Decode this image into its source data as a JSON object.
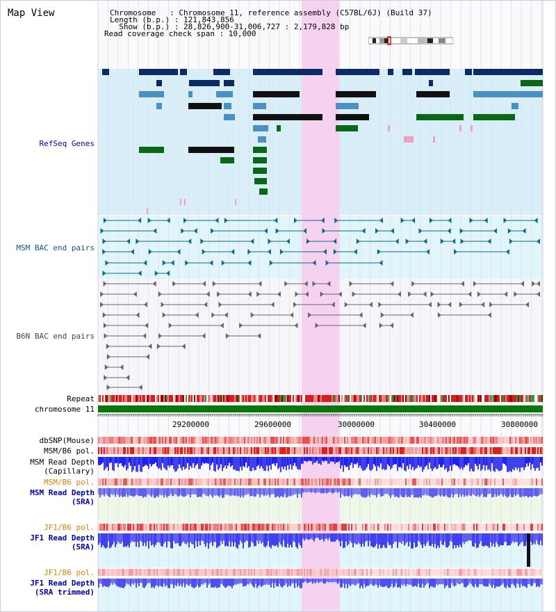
{
  "title": "Map View",
  "header": {
    "chromosome_line": "Chromosome   : Chromosome 11, reference assembly (C57BL/6J) (Build 37)",
    "length_line": "Length (b.p.) : 121,843,856",
    "show_line": "  Show (b.p.) : 28,826,900-31,006,727 : 2,179,828 bp",
    "coverage_line": "Read coverage check span : 10,000"
  },
  "tracks": {
    "refseq": "RefSeq Genes",
    "msm_bac": "MSM BAC end pairs",
    "b6n_bac": "B6N BAC end pairs",
    "repeat": "Repeat",
    "chromosome": "chromosome 11",
    "dbsnp": "dbSNP(Mouse)",
    "msm_b6_pol_1": "MSM/B6 pol.",
    "msm_read_depth_cap_1": "MSM Read Depth",
    "msm_read_depth_cap_2": "(Capillary)",
    "msm_b6_pol_2": "MSM/B6 pol.",
    "msm_read_depth_sra_1": "MSM Read Depth",
    "msm_read_depth_sra_2": "(SRA)",
    "jf1_b6_pol_1": "JF1/B6 pol.",
    "jf1_read_depth_sra_1": "JF1 Read Depth",
    "jf1_read_depth_sra_2": "(SRA)",
    "jf1_b6_pol_2": "JF1/B6 pol.",
    "jf1_read_depth_trim_1": "JF1 Read Depth",
    "jf1_read_depth_trim_2": "(SRA trimmed)"
  },
  "ruler": {
    "ticks": [
      "29200000",
      "29600000",
      "30000000",
      "30400000",
      "30800000"
    ]
  },
  "colors": {
    "title": "#000000",
    "refseq_label": "#0000aa",
    "msm_label": "#0c5a78",
    "b6n_label": "#444444",
    "jf1_label": "#0000aa",
    "pol_label": "#e08000",
    "refseq_bg": "#d8eef8",
    "bac_bg": "#e0f6fa",
    "highlight": "#f8d0f0",
    "gene_dark": "#0a2a68",
    "gene_light": "#4a90c0",
    "gene_green": "#086818",
    "bac_msm": "#0c6890",
    "bac_b6n": "#666666",
    "depth_blue": "#3030f0",
    "depth_light": "#7070f0"
  }
}
